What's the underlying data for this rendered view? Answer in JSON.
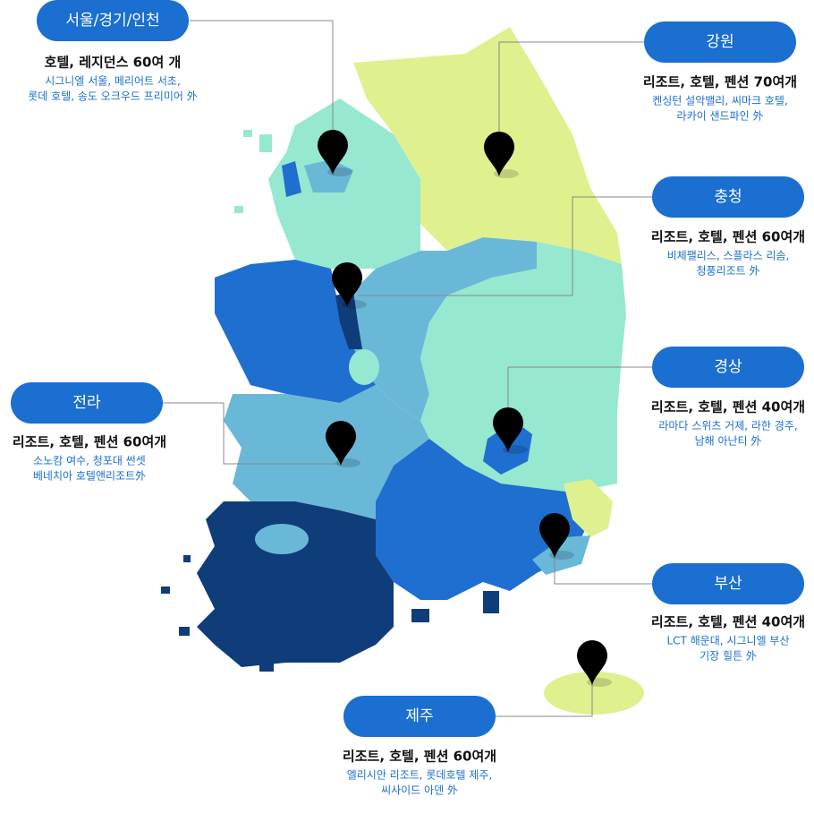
{
  "regions": [
    {
      "name": "서울/경기/인천",
      "summary": "호텔, 레지던스 60여 개",
      "details": [
        "시그니엘  서울, 메리어트 서초,",
        "롯데 호텔, 송도 오크우드 프리미어 外"
      ]
    },
    {
      "name": "강원",
      "summary": "리조트, 호텔, 펜션  70여개",
      "details": [
        "켄싱턴 설악밸리, 씨마크 호텔,",
        "라카이 샌드파인 外"
      ]
    },
    {
      "name": "충청",
      "summary": "리조트, 호텔, 펜션  60여개",
      "details": [
        "비체팰리스, 스플라스 리솜,",
        "청풍리조트 外"
      ]
    },
    {
      "name": "경상",
      "summary": "리조트, 호텔, 펜션  40여개",
      "details": [
        "라마다 스위츠 거제, 라한 경주,",
        "남해 아난티 外"
      ]
    },
    {
      "name": "전라",
      "summary": "리조트, 호텔, 펜션  60여개",
      "details": [
        "소노캄 여수, 청포대 썬셋",
        "베네치아 호텔앤리조트外"
      ]
    },
    {
      "name": "부산",
      "summary": "리조트, 호텔, 펜션  40여개",
      "details": [
        "LCT 해운대, 시그니엘 부산",
        "기장 힐튼 外"
      ]
    },
    {
      "name": "제주",
      "summary": "리조트, 호텔, 펜션  60여개",
      "details": [
        "엘리시안 리조트, 롯데호텔 제주,",
        "씨사이드 아덴 外"
      ]
    }
  ]
}
